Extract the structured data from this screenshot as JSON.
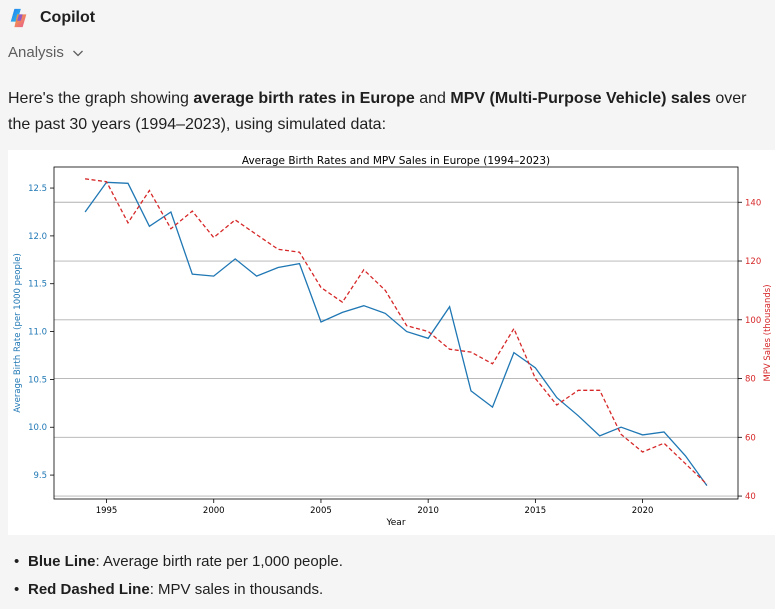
{
  "app": {
    "name": "Copilot",
    "logo_icon": "copilot-logo-icon"
  },
  "analysis": {
    "label": "Analysis",
    "icon": "chevron-down-icon"
  },
  "intro": {
    "prefix": "Here's the graph showing ",
    "bold1": "average birth rates in Europe",
    "middle": " and ",
    "bold2": "MPV (Multi-Purpose Vehicle) sales",
    "suffix": " over the past 30 years (1994–2023), using simulated data:"
  },
  "chart_data": {
    "type": "line",
    "title": "Average Birth Rates and MPV Sales in Europe (1994–2023)",
    "xlabel": "Year",
    "ylabel_left": "Average Birth Rate (per 1000 people)",
    "ylabel_right": "MPV Sales (thousands)",
    "x": [
      1994,
      1995,
      1996,
      1997,
      1998,
      1999,
      2000,
      2001,
      2002,
      2003,
      2004,
      2005,
      2006,
      2007,
      2008,
      2009,
      2010,
      2011,
      2012,
      2013,
      2014,
      2015,
      2016,
      2017,
      2018,
      2019,
      2020,
      2021,
      2022,
      2023
    ],
    "x_ticks": [
      1995,
      2000,
      2005,
      2010,
      2015,
      2020
    ],
    "xlim": [
      1992.55,
      2024.45
    ],
    "ylim_left": [
      9.25,
      12.72
    ],
    "ylim_right": [
      39,
      152
    ],
    "y_ticks_left": [
      9.5,
      10.0,
      10.5,
      11.0,
      11.5,
      12.0,
      12.5
    ],
    "y_tick_labels_left": [
      "9.5",
      "10.0",
      "10.5",
      "11.0",
      "11.5",
      "12.0",
      "12.5"
    ],
    "y_ticks_right": [
      40,
      60,
      80,
      100,
      120,
      140
    ],
    "series": [
      {
        "axis": "left",
        "color": "#1f77b4",
        "style": "solid",
        "values": [
          12.25,
          12.56,
          12.55,
          12.1,
          12.25,
          11.6,
          11.58,
          11.76,
          11.58,
          11.67,
          11.71,
          11.1,
          11.2,
          11.27,
          11.19,
          11.0,
          10.93,
          11.26,
          10.38,
          10.21,
          10.78,
          10.62,
          10.31,
          10.12,
          9.91,
          10.0,
          9.92,
          9.95,
          9.7,
          9.39
        ]
      },
      {
        "axis": "right",
        "color": "#d62728",
        "style": "dashed",
        "values": [
          148,
          147,
          133,
          144,
          131,
          137,
          128,
          134,
          129,
          124,
          123,
          111,
          106,
          117,
          110,
          98,
          96,
          90,
          89,
          85,
          97,
          80,
          71,
          76,
          76,
          61,
          55,
          58,
          51,
          44
        ]
      }
    ],
    "hlines_right": [
      140,
      120,
      100,
      80,
      60,
      40
    ],
    "grid": false
  },
  "bullets": [
    {
      "bold": "Blue Line",
      "text": ": Average birth rate per 1,000 people."
    },
    {
      "bold": "Red Dashed Line",
      "text": ": MPV sales in thousands."
    }
  ],
  "colors": {
    "left_axis": "#1f77b4",
    "right_axis": "#d62728",
    "hline": "#b0b0b0"
  }
}
